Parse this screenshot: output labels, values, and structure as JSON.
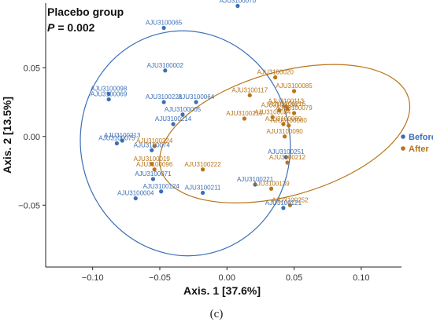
{
  "chart_data": {
    "type": "scatter",
    "panel_title": "Placebo group",
    "p_label": "P",
    "p_value": "= 0.002",
    "xlabel": "Axis. 1 [37.6%]",
    "ylabel": "Axis. 2 [13.5%]",
    "xlim": [
      -0.135,
      0.13
    ],
    "ylim": [
      -0.095,
      0.097
    ],
    "x_ticks": [
      -0.1,
      -0.05,
      0.0,
      0.05,
      0.1
    ],
    "x_tick_labels": [
      "−0.10",
      "−0.05",
      "0.00",
      "0.05",
      "0.10"
    ],
    "y_ticks": [
      -0.05,
      0.0,
      0.05
    ],
    "y_tick_labels": [
      "−0.05",
      "0.00",
      "0.05"
    ],
    "legend_position": "right",
    "grid": false,
    "series": [
      {
        "name": "Before",
        "color": "#3b6fb6",
        "ellipse": {
          "cx": -0.031,
          "cy": -0.005,
          "rx": 0.078,
          "ry": 0.082,
          "angle_deg": 10
        },
        "points": [
          {
            "label": "AJU3100070",
            "x": 0.008,
            "y": 0.095
          },
          {
            "label": "AJU3100065",
            "x": -0.047,
            "y": 0.079
          },
          {
            "label": "AJU3100002",
            "x": -0.046,
            "y": 0.048
          },
          {
            "label": "AJU3100098",
            "x": -0.088,
            "y": 0.031
          },
          {
            "label": "AJU3100069",
            "x": -0.088,
            "y": 0.027
          },
          {
            "label": "AJU3100223",
            "x": -0.047,
            "y": 0.025
          },
          {
            "label": "AJU3100064",
            "x": -0.023,
            "y": 0.025
          },
          {
            "label": "AJU3100005",
            "x": -0.033,
            "y": 0.016
          },
          {
            "label": "AJU3100214",
            "x": -0.04,
            "y": 0.009
          },
          {
            "label": "AJU3100213",
            "x": -0.078,
            "y": -0.003
          },
          {
            "label": "AJU3100075",
            "x": -0.082,
            "y": -0.005
          },
          {
            "label": "AJU3100074",
            "x": -0.056,
            "y": -0.01
          },
          {
            "label": "AJU3100251",
            "x": 0.044,
            "y": -0.015
          },
          {
            "label": "AJU3100071",
            "x": -0.055,
            "y": -0.031
          },
          {
            "label": "AJU3100124",
            "x": -0.049,
            "y": -0.04
          },
          {
            "label": "AJU3100211",
            "x": -0.018,
            "y": -0.041
          },
          {
            "label": "AJU3100221",
            "x": 0.021,
            "y": -0.035
          },
          {
            "label": "AJU3100004",
            "x": -0.068,
            "y": -0.045
          },
          {
            "label": "AJU3100121",
            "x": 0.042,
            "y": -0.052
          }
        ]
      },
      {
        "name": "After",
        "color": "#b8741a",
        "ellipse": {
          "cx": 0.043,
          "cy": 0.002,
          "rx": 0.096,
          "ry": 0.045,
          "angle_deg": 16
        },
        "points": [
          {
            "label": "AJU3100020",
            "x": 0.036,
            "y": 0.043
          },
          {
            "label": "AJU3100085",
            "x": 0.05,
            "y": 0.033
          },
          {
            "label": "AJU3100117",
            "x": 0.017,
            "y": 0.03
          },
          {
            "label": "AJU3100113",
            "x": 0.044,
            "y": 0.022
          },
          {
            "label": "AJU3100216",
            "x": 0.045,
            "y": 0.02
          },
          {
            "label": "AJU3100136",
            "x": 0.039,
            "y": 0.019
          },
          {
            "label": "AJU3100079",
            "x": 0.05,
            "y": 0.017
          },
          {
            "label": "AJU3100215",
            "x": 0.013,
            "y": 0.013
          },
          {
            "label": "AJU3100084",
            "x": 0.034,
            "y": 0.014
          },
          {
            "label": "AJU3100089",
            "x": 0.042,
            "y": 0.009
          },
          {
            "label": "AJU3100080",
            "x": 0.046,
            "y": 0.008
          },
          {
            "label": "AJU3100090",
            "x": 0.043,
            "y": 0.0
          },
          {
            "label": "AJU3100224",
            "x": -0.054,
            "y": -0.007
          },
          {
            "label": "AJU3100212",
            "x": 0.045,
            "y": -0.019
          },
          {
            "label": "AJU3100019",
            "x": -0.056,
            "y": -0.02
          },
          {
            "label": "AJU3100096",
            "x": -0.054,
            "y": -0.024
          },
          {
            "label": "AJU3100222",
            "x": -0.018,
            "y": -0.024
          },
          {
            "label": "AJU3100139",
            "x": 0.033,
            "y": -0.038
          },
          {
            "label": "AJU3100252",
            "x": 0.047,
            "y": -0.05
          }
        ]
      }
    ]
  },
  "caption": "(c)"
}
